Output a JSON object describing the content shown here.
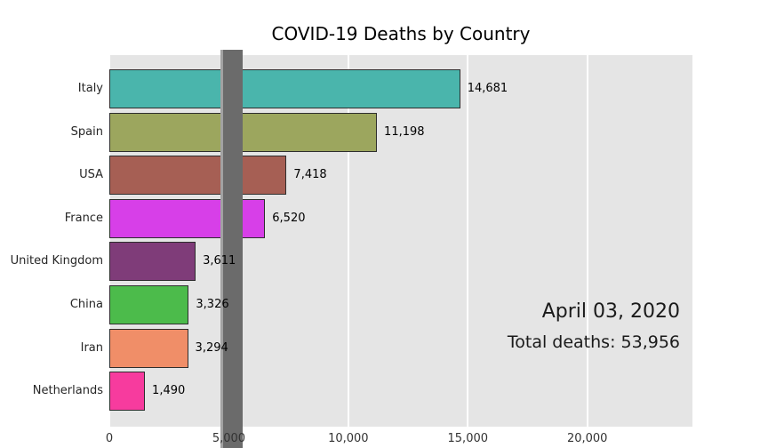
{
  "chart_data": {
    "type": "bar",
    "orientation": "horizontal",
    "title": "COVID-19 Deaths by Country",
    "categories": [
      "Italy",
      "Spain",
      "USA",
      "France",
      "United Kingdom",
      "China",
      "Iran",
      "Netherlands"
    ],
    "values": [
      14681,
      11198,
      7418,
      6520,
      3611,
      3326,
      3294,
      1490
    ],
    "value_labels": [
      "14,681",
      "11,198",
      "7,418",
      "6,520",
      "3,611",
      "3,326",
      "3,294",
      "1,490"
    ],
    "bar_colors": [
      "#4ab5ac",
      "#9ca65e",
      "#a65f54",
      "#d73fe8",
      "#7f3c79",
      "#4cbb4b",
      "#f08e68",
      "#f73b9e"
    ],
    "bar_edge_color": "#2e2e2e",
    "x_ticks": [
      0,
      5000,
      10000,
      15000,
      20000
    ],
    "x_tick_labels": [
      "0",
      "5,000",
      "10,000",
      "15,000",
      "20,000"
    ],
    "xlim": [
      0,
      24400
    ],
    "grid": true,
    "grid_color": "#ffffff",
    "plot_bg": "#e5e5e5",
    "legend": "none",
    "annotations": [
      {
        "text": "April 03, 2020"
      },
      {
        "text": "Total deaths: 53,956"
      }
    ],
    "reference_band": {
      "x_start": 4650,
      "x_end": 5580,
      "color": "#6b6b6b"
    }
  }
}
